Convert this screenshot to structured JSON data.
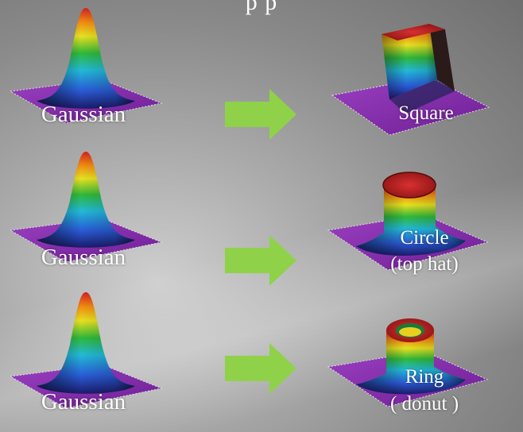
{
  "header_fragment": "p                    p",
  "rows": [
    {
      "input_label": "Gaussian",
      "output_line1": "Square",
      "output_line2": ""
    },
    {
      "input_label": "Gaussian",
      "output_line1": "Circle",
      "output_line2": "(top hat)"
    },
    {
      "input_label": "Gaussian",
      "output_line1": "Ring",
      "output_line2": "( donut )"
    }
  ],
  "colors": {
    "arrow": "#8fd24a",
    "base": "#8a2fb0",
    "flat_top": "#c81e1e"
  },
  "icons": {
    "arrow": "right-arrow-icon",
    "input_beam": "gaussian-profile-icon",
    "output_beams": [
      "square-profile-icon",
      "top-hat-profile-icon",
      "donut-profile-icon"
    ]
  }
}
